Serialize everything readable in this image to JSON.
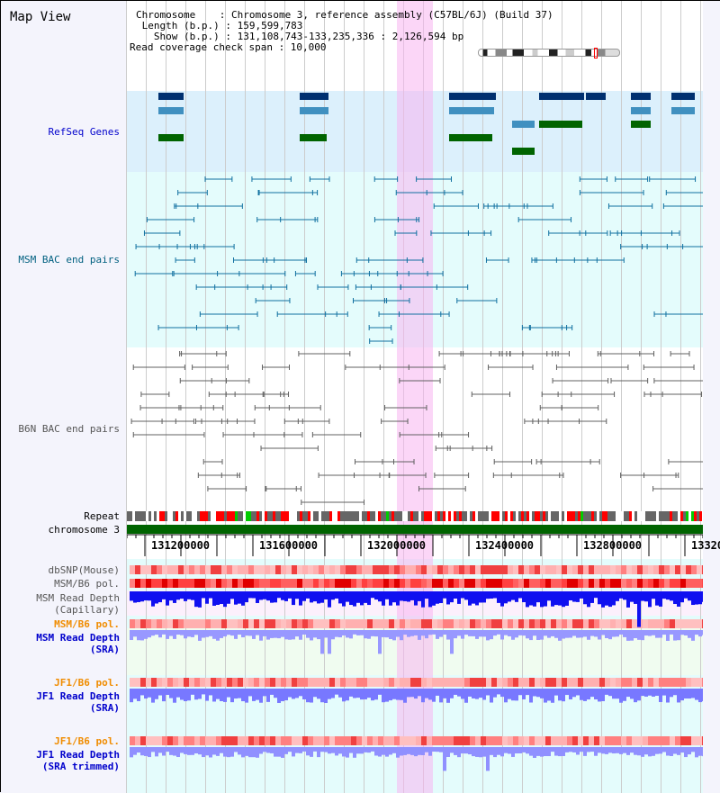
{
  "title": "Map View",
  "info": {
    "chromosome": "Chromosome    : Chromosome 3, reference assembly (C57BL/6J) (Build 37)",
    "length": " Length (b.p.) : 159,599,783",
    "show": "   Show (b.p.) : 131,108,743-133,235,336 : 2,126,594 bp",
    "span": "Read coverage check span : 10,000"
  },
  "tracks": {
    "refseq": "RefSeq Genes",
    "msm_bac": "MSM BAC end pairs",
    "b6n_bac": "B6N BAC end pairs",
    "repeat": "Repeat",
    "chromosome": "chromosome 3",
    "dbsnp": "dbSNP(Mouse)",
    "msm_pol1": "MSM/B6 pol.",
    "msm_depth_cap1": "MSM Read Depth",
    "msm_depth_cap2": "(Capillary)",
    "msm_pol2": "MSM/B6 pol.",
    "msm_sra1": "MSM Read Depth",
    "msm_sra2": "(SRA)",
    "jf1_pol1": "JF1/B6 pol.",
    "jf1_sra1": "JF1 Read Depth",
    "jf1_sra2": "(SRA)",
    "jf1_pol2": "JF1/B6 pol.",
    "jf1_trim1": "JF1 Read Depth",
    "jf1_trim2": "(SRA trimmed)"
  },
  "axis": {
    "ticks": [
      "131200000",
      "131600000",
      "132000000",
      "132400000",
      "132800000",
      "13320"
    ],
    "range": [
      131108743,
      133235336
    ]
  },
  "colors": {
    "refseq_bg": "#dcf0fc",
    "bac_bg": "#e4fcfc",
    "highlight": "#f8b4f0",
    "chromosome": "#006400",
    "depth_cap": "#0000ff",
    "depth_sra": "#7878ff"
  }
}
